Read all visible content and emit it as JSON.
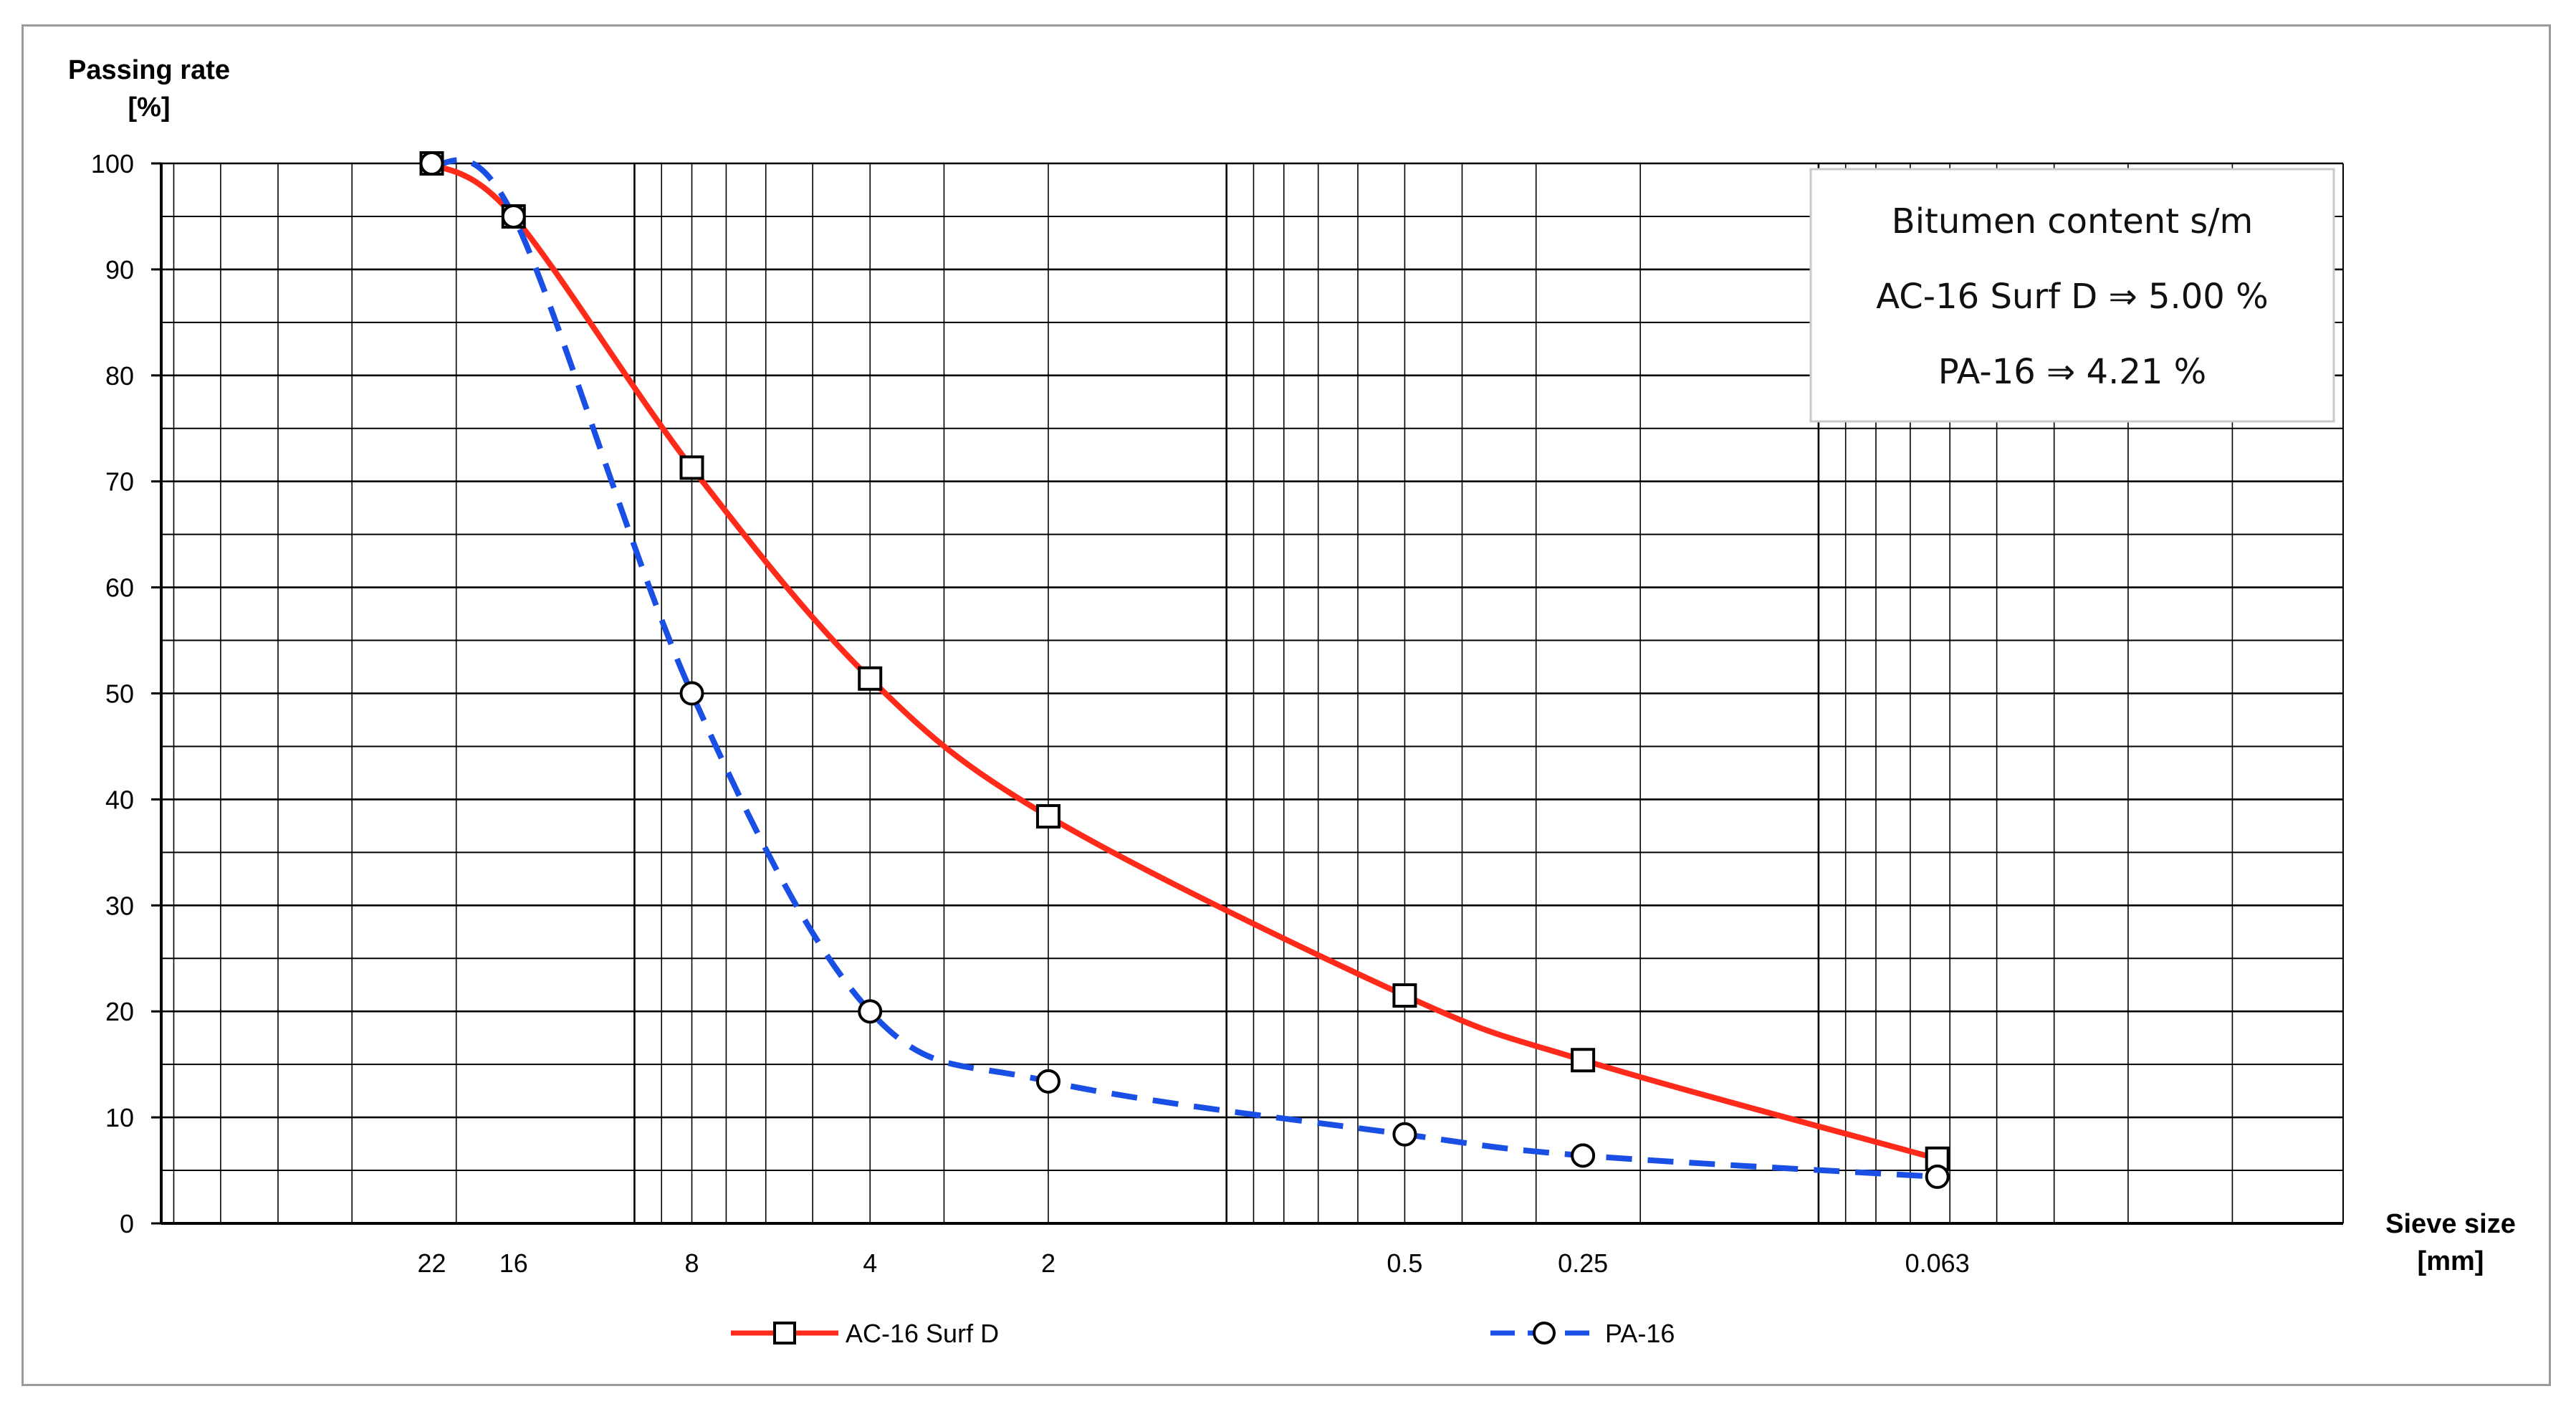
{
  "chart_data": {
    "type": "line",
    "title": "",
    "ylabel_line1": "Passing rate",
    "ylabel_line2": "[%]",
    "xlabel_line1": "Sieve size",
    "xlabel_line2": "[mm]",
    "y_scale": "linear",
    "x_scale": "log",
    "x_axis_direction": "decreasing",
    "ylim": [
      0,
      100
    ],
    "xlim": [
      63,
      0.013
    ],
    "grid": true,
    "y_ticks": [
      "0",
      "10",
      "20",
      "30",
      "40",
      "50",
      "60",
      "70",
      "80",
      "90",
      "100"
    ],
    "x_ticks": [
      {
        "value": 22,
        "label": "22"
      },
      {
        "value": 16,
        "label": "16"
      },
      {
        "value": 8,
        "label": "8"
      },
      {
        "value": 4,
        "label": "4"
      },
      {
        "value": 2,
        "label": "2"
      },
      {
        "value": 0.5,
        "label": "0.5"
      },
      {
        "value": 0.25,
        "label": "0.25"
      },
      {
        "value": 0.063,
        "label": "0.063"
      }
    ],
    "series": [
      {
        "name": "AC-16 Surf D",
        "color": "#ff2a1a",
        "line_style": "solid",
        "marker": "square",
        "points": [
          {
            "x": 22,
            "y": 100
          },
          {
            "x": 16,
            "y": 95
          },
          {
            "x": 8,
            "y": 71.3
          },
          {
            "x": 4,
            "y": 51.4
          },
          {
            "x": 2,
            "y": 38.4
          },
          {
            "x": 0.5,
            "y": 21.5
          },
          {
            "x": 0.25,
            "y": 15.4
          },
          {
            "x": 0.063,
            "y": 6.1
          }
        ]
      },
      {
        "name": "PA-16",
        "color": "#1a4fe6",
        "line_style": "dashed",
        "marker": "circle",
        "points": [
          {
            "x": 22,
            "y": 100
          },
          {
            "x": 16,
            "y": 95
          },
          {
            "x": 8,
            "y": 50
          },
          {
            "x": 4,
            "y": 20
          },
          {
            "x": 2,
            "y": 13.4
          },
          {
            "x": 0.5,
            "y": 8.4
          },
          {
            "x": 0.25,
            "y": 6.4
          },
          {
            "x": 0.063,
            "y": 4.4
          }
        ]
      }
    ],
    "legend_position": "bottom",
    "annotation": {
      "lines": [
        "Bitumen content s/m",
        "AC-16 Surf D ⇒ 5.00 %",
        "PA-16 ⇒ 4.21 %"
      ],
      "position": "top-right"
    }
  }
}
